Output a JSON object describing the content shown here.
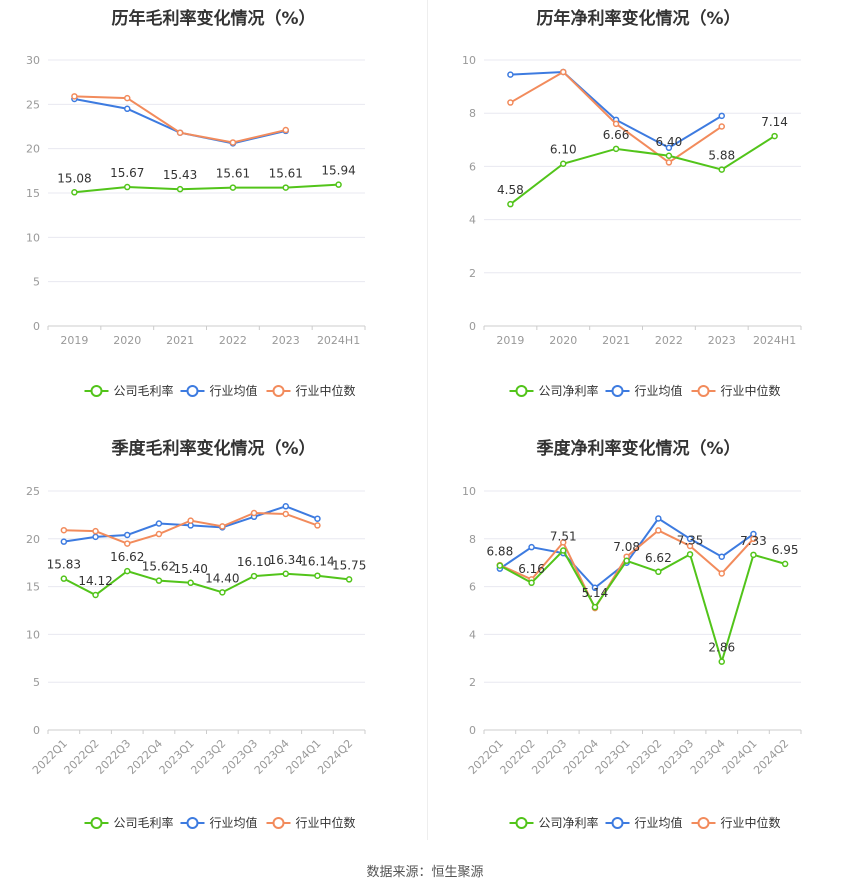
{
  "charts": {
    "colors": {
      "company": "#52c41a",
      "industry_avg": "#3d7be0",
      "industry_median": "#f28b5c"
    },
    "legend_gross": [
      "公司毛利率",
      "行业均值",
      "行业中位数"
    ],
    "legend_net": [
      "公司净利率",
      "行业均值",
      "行业中位数"
    ]
  },
  "source": "数据来源：恒生聚源",
  "chart_data": [
    {
      "type": "line",
      "title": "历年毛利率变化情况（%）",
      "categories": [
        "2019",
        "2020",
        "2021",
        "2022",
        "2023",
        "2024H1"
      ],
      "ylim": [
        0,
        30
      ],
      "yticks": [
        0,
        5,
        10,
        15,
        20,
        25,
        30
      ],
      "series": [
        {
          "name": "公司毛利率",
          "values": [
            15.08,
            15.67,
            15.43,
            15.61,
            15.61,
            15.94
          ],
          "labels": true
        },
        {
          "name": "行业均值",
          "values": [
            25.6,
            24.5,
            21.8,
            20.6,
            22.0,
            null
          ]
        },
        {
          "name": "行业中位数",
          "values": [
            25.9,
            25.7,
            21.8,
            20.7,
            22.1,
            null
          ]
        }
      ]
    },
    {
      "type": "line",
      "title": "历年净利率变化情况（%）",
      "categories": [
        "2019",
        "2020",
        "2021",
        "2022",
        "2023",
        "2024H1"
      ],
      "ylim": [
        0,
        10
      ],
      "yticks": [
        0,
        2,
        4,
        6,
        8,
        10
      ],
      "series": [
        {
          "name": "公司净利率",
          "values": [
            4.58,
            6.1,
            6.66,
            6.4,
            5.88,
            7.14
          ],
          "labels": true
        },
        {
          "name": "行业均值",
          "values": [
            9.45,
            9.55,
            7.75,
            6.7,
            7.9,
            null
          ]
        },
        {
          "name": "行业中位数",
          "values": [
            8.4,
            9.55,
            7.6,
            6.15,
            7.5,
            null
          ]
        }
      ]
    },
    {
      "type": "line",
      "title": "季度毛利率变化情况（%）",
      "categories": [
        "2022Q1",
        "2022Q2",
        "2022Q3",
        "2022Q4",
        "2023Q1",
        "2023Q2",
        "2023Q3",
        "2023Q4",
        "2024Q1",
        "2024Q2"
      ],
      "ylim": [
        0,
        25
      ],
      "yticks": [
        0,
        5,
        10,
        15,
        20,
        25
      ],
      "series": [
        {
          "name": "公司毛利率",
          "values": [
            15.83,
            14.12,
            16.62,
            15.62,
            15.4,
            14.4,
            16.1,
            16.34,
            16.14,
            15.75
          ],
          "labels": true
        },
        {
          "name": "行业均值",
          "values": [
            19.7,
            20.2,
            20.4,
            21.6,
            21.4,
            21.2,
            22.3,
            23.4,
            22.1,
            null
          ]
        },
        {
          "name": "行业中位数",
          "values": [
            20.9,
            20.8,
            19.5,
            20.5,
            21.9,
            21.3,
            22.7,
            22.6,
            21.4,
            null
          ]
        }
      ]
    },
    {
      "type": "line",
      "title": "季度净利率变化情况（%）",
      "categories": [
        "2022Q1",
        "2022Q2",
        "2022Q3",
        "2022Q4",
        "2023Q1",
        "2023Q2",
        "2023Q3",
        "2023Q4",
        "2024Q1",
        "2024Q2"
      ],
      "ylim": [
        0,
        10
      ],
      "yticks": [
        0,
        2,
        4,
        6,
        8,
        10
      ],
      "series": [
        {
          "name": "公司净利率",
          "values": [
            6.88,
            6.16,
            7.51,
            5.14,
            7.08,
            6.62,
            7.35,
            2.86,
            7.33,
            6.95
          ],
          "labels": true
        },
        {
          "name": "行业均值",
          "values": [
            6.75,
            7.65,
            7.4,
            5.95,
            7.0,
            8.85,
            8.0,
            7.25,
            8.2,
            null
          ]
        },
        {
          "name": "行业中位数",
          "values": [
            6.9,
            6.3,
            7.85,
            5.1,
            7.25,
            8.35,
            7.7,
            6.55,
            8.0,
            null
          ]
        }
      ]
    }
  ]
}
